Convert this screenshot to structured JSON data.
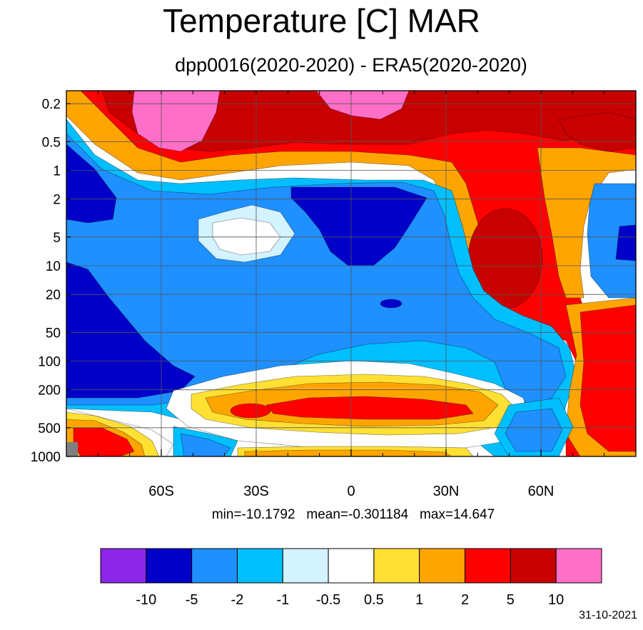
{
  "chart_data": {
    "type": "heatmap",
    "title": "Temperature [C] MAR",
    "subtitle": "dpp0016(2020-2020) - ERA5(2020-2020)",
    "x_ticks": [
      {
        "label": "60S",
        "lat": -60
      },
      {
        "label": "30S",
        "lat": -30
      },
      {
        "label": "0",
        "lat": 0
      },
      {
        "label": "30N",
        "lat": 30
      },
      {
        "label": "60N",
        "lat": 60
      }
    ],
    "xlim": [
      -90,
      90
    ],
    "y_scale": "log",
    "ylim_hpa": [
      0.1,
      1000
    ],
    "y_ticks": [
      {
        "label": "0.2",
        "p": 0.2
      },
      {
        "label": "0.5",
        "p": 0.5
      },
      {
        "label": "1",
        "p": 1
      },
      {
        "label": "2",
        "p": 2
      },
      {
        "label": "5",
        "p": 5
      },
      {
        "label": "10",
        "p": 10
      },
      {
        "label": "20",
        "p": 20
      },
      {
        "label": "50",
        "p": 50
      },
      {
        "label": "100",
        "p": 100
      },
      {
        "label": "200",
        "p": 200
      },
      {
        "label": "500",
        "p": 500
      },
      {
        "label": "1000",
        "p": 1000
      }
    ],
    "contour_levels": [
      "-10",
      "-5",
      "-2",
      "-1",
      "-0.5",
      "0.5",
      "1",
      "2",
      "5",
      "10"
    ],
    "colors": [
      "#8b26e8",
      "#0000c8",
      "#1e90ff",
      "#00bfff",
      "#d2f3ff",
      "#ffffff",
      "#ffe033",
      "#ffa500",
      "#ff0000",
      "#c80000",
      "#ff6ec7"
    ],
    "missing_color": "#808080",
    "grid": true,
    "stats": {
      "min": "min=-10.1792",
      "mean": "mean=-0.301184",
      "max": "max=14.647"
    },
    "date": "31-10-2021"
  }
}
